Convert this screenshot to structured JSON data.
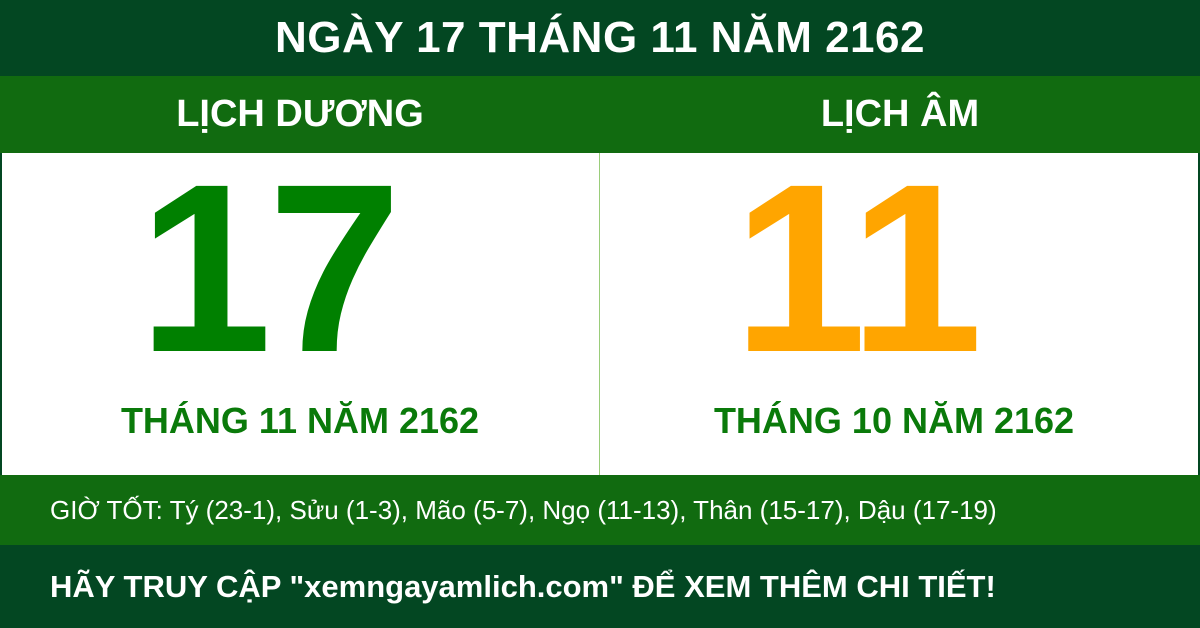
{
  "header": {
    "title": "NGÀY 17 THÁNG 11 NĂM 2162"
  },
  "solar": {
    "label": "LỊCH DƯƠNG",
    "day": "17",
    "month_year": "THÁNG 11 NĂM 2162"
  },
  "lunar": {
    "label": "LỊCH ÂM",
    "day": "11",
    "month_year": "THÁNG 10 NĂM 2162"
  },
  "good_hours": "GIỜ TỐT: Tý (23-1), Sửu (1-3), Mão (5-7), Ngọ (11-13), Thân (15-17), Dậu (17-19)",
  "footer": "HÃY TRUY CẬP \"xemngayamlich.com\" ĐỂ XEM THÊM CHI TIẾT!",
  "colors": {
    "dark_green": "#034722",
    "band_green": "#116b10",
    "solar_day": "#008000",
    "lunar_day": "#ffa500"
  }
}
